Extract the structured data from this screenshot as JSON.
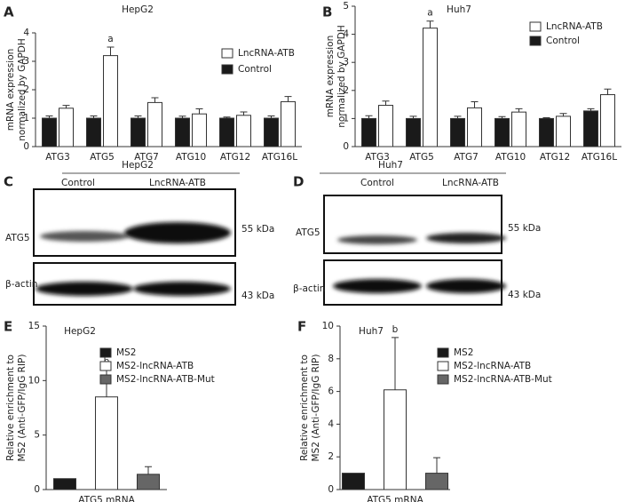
{
  "chart_data": [
    {
      "type": "bar",
      "panel": "A",
      "title": "HepG2",
      "ylabel": [
        "mRNA expression",
        "normalized by GAPDH"
      ],
      "categories": [
        "ATG3",
        "ATG5",
        "ATG7",
        "ATG10",
        "ATG12",
        "ATG16L"
      ],
      "series": [
        {
          "name": "LncRNA-ATB",
          "color": "#ffffff",
          "values": [
            1.35,
            3.2,
            1.55,
            1.15,
            1.1,
            1.58
          ],
          "errors": [
            0.1,
            0.3,
            0.17,
            0.18,
            0.12,
            0.18
          ],
          "annotations": [
            null,
            "a",
            null,
            null,
            null,
            null
          ]
        },
        {
          "name": "Control",
          "color": "#1a1a1a",
          "values": [
            1.0,
            1.0,
            1.0,
            1.0,
            1.0,
            1.0
          ],
          "errors": [
            0.08,
            0.08,
            0.08,
            0.07,
            0.04,
            0.08
          ]
        }
      ],
      "ylim": [
        0,
        4
      ],
      "yticks": [
        0,
        1,
        2,
        3,
        4
      ]
    },
    {
      "type": "bar",
      "panel": "B",
      "title": "Huh7",
      "ylabel": [
        "mRNA expression",
        "normalized by GAPDH"
      ],
      "categories": [
        "ATG3",
        "ATG5",
        "ATG7",
        "ATG10",
        "ATG12",
        "ATG16L"
      ],
      "series": [
        {
          "name": "LncRNA-ATB",
          "color": "#ffffff",
          "values": [
            1.47,
            4.22,
            1.38,
            1.23,
            1.08,
            1.85
          ],
          "errors": [
            0.15,
            0.25,
            0.22,
            0.12,
            0.1,
            0.2
          ],
          "annotations": [
            null,
            "a",
            null,
            null,
            null,
            null
          ]
        },
        {
          "name": "Control",
          "color": "#1a1a1a",
          "values": [
            1.0,
            1.0,
            1.0,
            1.0,
            1.0,
            1.27
          ],
          "errors": [
            0.1,
            0.08,
            0.08,
            0.07,
            0.03,
            0.08
          ]
        }
      ],
      "ylim": [
        0,
        5
      ],
      "yticks": [
        0,
        1,
        2,
        3,
        4,
        5
      ]
    },
    {
      "type": "bar",
      "panel": "E",
      "title": "HepG2",
      "ylabel": [
        "Relative enrichment to",
        "MS2 (Anti-GFP/IgG RIP)"
      ],
      "categories": [
        "ATG5 mRNA"
      ],
      "series": [
        {
          "name": "MS2",
          "color": "#1a1a1a",
          "values": [
            1.0
          ]
        },
        {
          "name": "MS2-lncRNA-ATB",
          "color": "#ffffff",
          "values": [
            8.5
          ],
          "errors": [
            2.5
          ],
          "annotations": [
            "b"
          ]
        },
        {
          "name": "MS2-lncRNA-ATB-Mut",
          "color": "#666666",
          "values": [
            1.4
          ],
          "errors": [
            0.7
          ]
        }
      ],
      "ylim": [
        0,
        15
      ],
      "yticks": [
        0,
        5,
        10,
        15
      ]
    },
    {
      "type": "bar",
      "panel": "F",
      "title": "Huh7",
      "ylabel": [
        "Relative enrichment to",
        "MS2 (Anti-GFP/IgG RIP)"
      ],
      "categories": [
        "ATG5 mRNA"
      ],
      "series": [
        {
          "name": "MS2",
          "color": "#1a1a1a",
          "values": [
            1.0
          ]
        },
        {
          "name": "MS2-lncRNA-ATB",
          "color": "#ffffff",
          "values": [
            6.1
          ],
          "errors": [
            3.2
          ],
          "annotations": [
            "b"
          ]
        },
        {
          "name": "MS2-lncRNA-ATB-Mut",
          "color": "#666666",
          "values": [
            1.0
          ],
          "errors": [
            0.95
          ]
        }
      ],
      "ylim": [
        0,
        10
      ],
      "yticks": [
        0,
        2,
        4,
        6,
        8,
        10
      ]
    }
  ],
  "blots": [
    {
      "panel": "C",
      "cell_line": "HepG2",
      "lanes": [
        "Control",
        "LncRNA-ATB"
      ],
      "rows": [
        {
          "protein": "ATG5",
          "size": "55 kDa"
        },
        {
          "protein": "β-actin",
          "size": "43 kDa"
        }
      ]
    },
    {
      "panel": "D",
      "cell_line": "Huh7",
      "lanes": [
        "Control",
        "LncRNA-ATB"
      ],
      "rows": [
        {
          "protein": "ATG5",
          "size": "55 kDa"
        },
        {
          "protein": "β-actin",
          "size": "43 kDa"
        }
      ]
    }
  ]
}
